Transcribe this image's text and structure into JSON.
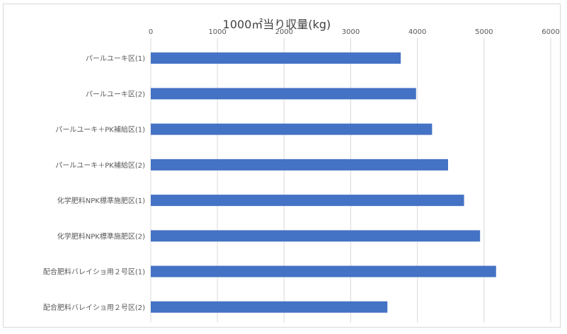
{
  "chart_data": {
    "type": "bar",
    "orientation": "horizontal",
    "title": "1000㎡当り収量(kg)",
    "xlabel": "",
    "ylabel": "",
    "xlim": [
      0,
      6000
    ],
    "x_ticks": [
      0,
      1000,
      2000,
      3000,
      4000,
      5000,
      6000
    ],
    "x_axis_position": "top",
    "grid": true,
    "legend": "none",
    "categories": [
      "パールユーキ区(1)",
      "パールユーキ区(2)",
      "パールユーキ＋PK補給区(1)",
      "パールユーキ＋PK補給区(2)",
      "化学肥料NPK標準施肥区(1)",
      "化学肥料NPK標準施肥区(2)",
      "配合肥料バレイショ用２号区(1)",
      "配合肥料バレイショ用２号区(2)"
    ],
    "values": [
      3750,
      3980,
      4220,
      4460,
      4700,
      4940,
      5180,
      3550
    ],
    "colors": {
      "bar": "#4472c4",
      "grid": "#d9d9d9"
    }
  }
}
